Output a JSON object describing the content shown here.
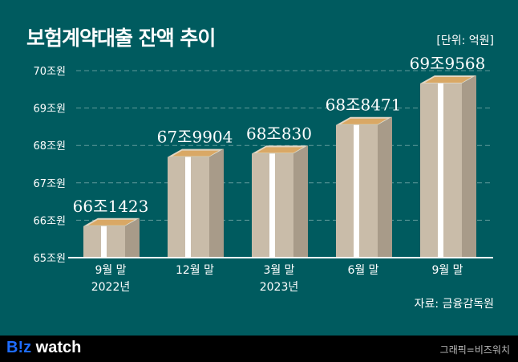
{
  "title": "보험계약대출 잔액 추이",
  "unit": "[단위: 억원]",
  "source": "자료: 금융감독원",
  "footer": {
    "logo_b": "B!z",
    "logo_rest": " watch",
    "credit": "그래픽=비즈워치"
  },
  "colors": {
    "background": "#005b5f",
    "box_front": "#c9bca9",
    "box_side": "#a89b89",
    "box_top": "#e2d6c3",
    "band": "#ffffff"
  },
  "chart_data": {
    "type": "bar",
    "title": "보험계약대출 잔액 추이",
    "categories": [
      [
        "9월 말",
        "2022년"
      ],
      [
        "12월 말",
        ""
      ],
      [
        "3월 말",
        "2023년"
      ],
      [
        "6월 말",
        ""
      ],
      [
        "9월 말",
        ""
      ]
    ],
    "values": [
      661423,
      679904,
      680830,
      688471,
      699568
    ],
    "labels": [
      "66조1423",
      "67조9904",
      "68조830",
      "68조8471",
      "69조9568"
    ],
    "yticks": [
      "65조원",
      "66조원",
      "67조원",
      "68조원",
      "69조원",
      "70조원"
    ],
    "ylim": [
      650000,
      700000
    ],
    "grid": true
  }
}
